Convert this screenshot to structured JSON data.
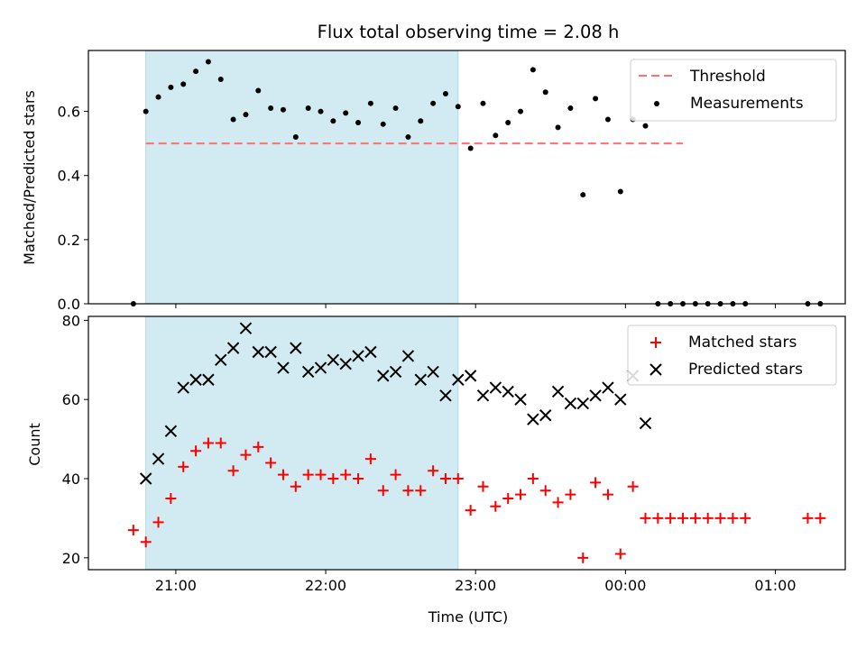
{
  "title": "Flux total observing time = 2.08 h",
  "colors": {
    "threshold": "#ff7070",
    "measurements": "#000000",
    "matched": "#ff0000",
    "predicted": "#000000",
    "shade": "#add8e6"
  },
  "chart_data": [
    {
      "type": "scatter",
      "ylabel": "Matched/Predicted stars",
      "x_axis": "time (UTC)",
      "ylim": [
        0,
        0.79
      ],
      "yticks": [
        "0.0",
        "0.2",
        "0.4",
        "0.6"
      ],
      "shaded_interval": [
        "20:48",
        "22:53"
      ],
      "legend": [
        "Threshold",
        "Measurements"
      ],
      "legend_position": "top-right",
      "threshold": {
        "name": "Threshold",
        "value": 0.5,
        "x_range": [
          "20:48",
          "24:23"
        ]
      },
      "series": [
        {
          "name": "Measurements",
          "x": [
            "20:43",
            "20:48",
            "20:53",
            "20:58",
            "21:03",
            "21:08",
            "21:13",
            "21:18",
            "21:23",
            "21:28",
            "21:33",
            "21:38",
            "21:43",
            "21:48",
            "21:53",
            "21:58",
            "22:03",
            "22:08",
            "22:13",
            "22:18",
            "22:23",
            "22:28",
            "22:33",
            "22:38",
            "22:43",
            "22:48",
            "22:53",
            "22:58",
            "23:03",
            "23:08",
            "23:13",
            "23:18",
            "23:23",
            "23:28",
            "23:33",
            "23:38",
            "23:43",
            "23:48",
            "23:53",
            "23:58",
            "24:03",
            "24:08",
            "24:13",
            "24:18",
            "24:23",
            "24:28",
            "24:33",
            "24:38",
            "24:43",
            "24:48",
            "25:13",
            "25:18"
          ],
          "y": [
            0.0,
            0.6,
            0.645,
            0.675,
            0.685,
            0.725,
            0.755,
            0.7,
            0.575,
            0.59,
            0.665,
            0.61,
            0.605,
            0.52,
            0.61,
            0.6,
            0.57,
            0.595,
            0.565,
            0.625,
            0.56,
            0.61,
            0.52,
            0.57,
            0.625,
            0.655,
            0.615,
            0.485,
            0.625,
            0.525,
            0.565,
            0.6,
            0.73,
            0.66,
            0.55,
            0.61,
            0.34,
            0.64,
            0.575,
            0.35,
            0.575,
            0.555,
            0.0,
            0.0,
            0.0,
            0.0,
            0.0,
            0.0,
            0.0,
            0.0,
            0.0,
            0.0
          ]
        }
      ]
    },
    {
      "type": "scatter",
      "ylabel": "Count",
      "xlabel": "Time (UTC)",
      "ylim": [
        17,
        81
      ],
      "yticks": [
        "20",
        "40",
        "60",
        "80"
      ],
      "xticks": [
        "21:00",
        "22:00",
        "23:00",
        "00:00",
        "01:00"
      ],
      "shaded_interval": [
        "20:48",
        "22:53"
      ],
      "legend": [
        "Matched stars",
        "Predicted stars"
      ],
      "legend_position": "top-right",
      "series": [
        {
          "name": "Matched stars",
          "x": [
            "20:43",
            "20:48",
            "20:53",
            "20:58",
            "21:03",
            "21:08",
            "21:13",
            "21:18",
            "21:23",
            "21:28",
            "21:33",
            "21:38",
            "21:43",
            "21:48",
            "21:53",
            "21:58",
            "22:03",
            "22:08",
            "22:13",
            "22:18",
            "22:23",
            "22:28",
            "22:33",
            "22:38",
            "22:43",
            "22:48",
            "22:53",
            "22:58",
            "23:03",
            "23:08",
            "23:13",
            "23:18",
            "23:23",
            "23:28",
            "23:33",
            "23:38",
            "23:43",
            "23:48",
            "23:53",
            "23:58",
            "24:03",
            "24:08",
            "24:13",
            "24:18",
            "24:23",
            "24:28",
            "24:33",
            "24:38",
            "24:43",
            "24:48",
            "25:13",
            "25:18"
          ],
          "y": [
            27,
            24,
            29,
            35,
            43,
            47,
            49,
            49,
            42,
            46,
            48,
            44,
            41,
            38,
            41,
            41,
            40,
            41,
            40,
            45,
            37,
            41,
            37,
            37,
            42,
            40,
            40,
            32,
            38,
            33,
            35,
            36,
            40,
            37,
            34,
            36,
            20,
            39,
            36,
            21,
            38,
            30,
            30,
            30,
            30,
            30,
            30,
            30,
            30,
            30,
            30,
            30
          ]
        },
        {
          "name": "Predicted stars",
          "x": [
            "20:48",
            "20:53",
            "20:58",
            "21:03",
            "21:08",
            "21:13",
            "21:18",
            "21:23",
            "21:28",
            "21:33",
            "21:38",
            "21:43",
            "21:48",
            "21:53",
            "21:58",
            "22:03",
            "22:08",
            "22:13",
            "22:18",
            "22:23",
            "22:28",
            "22:33",
            "22:38",
            "22:43",
            "22:48",
            "22:53",
            "22:58",
            "23:03",
            "23:08",
            "23:13",
            "23:18",
            "23:23",
            "23:28",
            "23:33",
            "23:38",
            "23:43",
            "23:48",
            "23:53",
            "23:58",
            "24:03",
            "24:08"
          ],
          "y": [
            40,
            45,
            52,
            63,
            65,
            65,
            70,
            73,
            78,
            72,
            72,
            68,
            73,
            67,
            68,
            70,
            69,
            71,
            72,
            66,
            67,
            71,
            65,
            67,
            61,
            65,
            66,
            61,
            63,
            62,
            60,
            55,
            56,
            62,
            59,
            59,
            61,
            63,
            60,
            66,
            54
          ]
        }
      ]
    }
  ]
}
